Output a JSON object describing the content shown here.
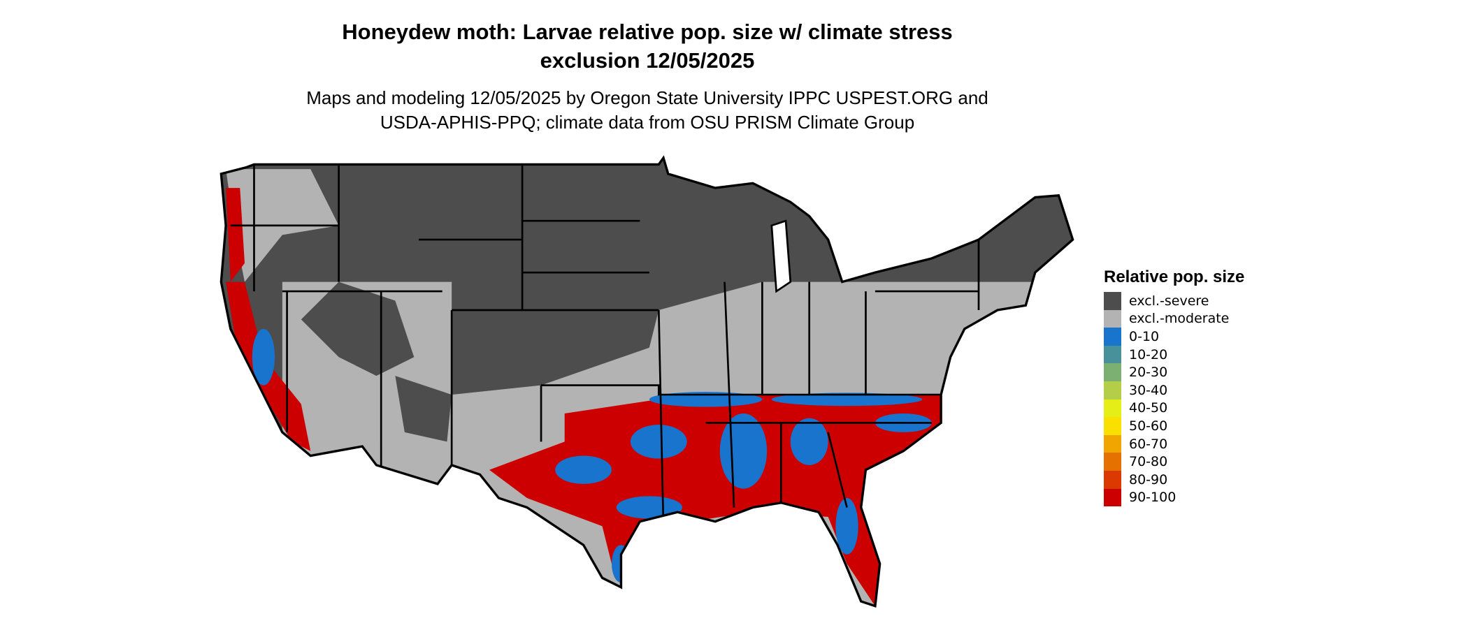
{
  "title": {
    "line1": "Honeydew moth: Larvae relative pop. size w/ climate stress",
    "line2": "exclusion 12/05/2025"
  },
  "subtitle": {
    "line1": "Maps and modeling 12/05/2025 by Oregon State University IPPC USPEST.ORG and",
    "line2": "USDA-APHIS-PPQ; climate data from OSU PRISM Climate Group"
  },
  "legend": {
    "title": "Relative pop. size",
    "items": [
      {
        "label": "excl.-severe",
        "color": "#4d4d4d"
      },
      {
        "label": "excl.-moderate",
        "color": "#b3b3b3"
      },
      {
        "label": "0-10",
        "color": "#1874cd"
      },
      {
        "label": "10-20",
        "color": "#48919b"
      },
      {
        "label": "20-30",
        "color": "#7caf72"
      },
      {
        "label": "30-40",
        "color": "#b4cf47"
      },
      {
        "label": "40-50",
        "color": "#e6ee18"
      },
      {
        "label": "50-60",
        "color": "#f9e000"
      },
      {
        "label": "60-70",
        "color": "#f0a500"
      },
      {
        "label": "70-80",
        "color": "#e57200"
      },
      {
        "label": "80-90",
        "color": "#dc3900"
      },
      {
        "label": "90-100",
        "color": "#cd0000"
      }
    ]
  }
}
